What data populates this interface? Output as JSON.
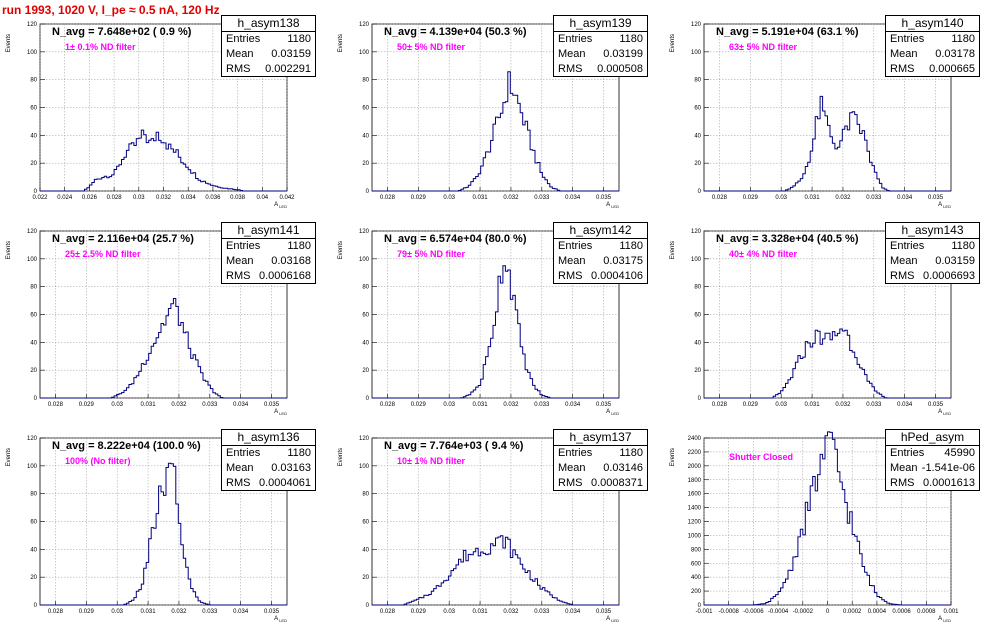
{
  "header": "run 1993,  1020 V, I_pe ≈ 0.5 nA, 120 Hz",
  "stat_labels": {
    "entries": "Entries",
    "mean": "Mean",
    "rms": "RMS"
  },
  "ylabel": "Events",
  "xlabel": "A",
  "xlabel_sub": "LED",
  "chart_data": [
    {
      "type": "bar",
      "title": "h_asym138",
      "navg": "N_avg = 7.648e+02 ( 0.9 %)",
      "filter": "1± 0.1% ND filter",
      "stats": {
        "entries": "1180",
        "mean": "0.03159",
        "rms": "0.002291"
      },
      "xlim": [
        0.022,
        0.042
      ],
      "ylim": [
        0,
        120
      ],
      "xticks": [
        "0.022",
        "0.024",
        "0.026",
        "0.028",
        "0.03",
        "0.032",
        "0.034",
        "0.036",
        "0.038",
        "0.04",
        "0.042"
      ],
      "yticks": [
        "0",
        "20",
        "40",
        "60",
        "80",
        "100",
        "120"
      ],
      "profile": [
        [
          0.0255,
          0
        ],
        [
          0.026,
          3
        ],
        [
          0.0265,
          8
        ],
        [
          0.027,
          10
        ],
        [
          0.028,
          12
        ],
        [
          0.0285,
          20
        ],
        [
          0.029,
          28
        ],
        [
          0.0295,
          31
        ],
        [
          0.03,
          36
        ],
        [
          0.0305,
          41
        ],
        [
          0.031,
          33
        ],
        [
          0.0315,
          42
        ],
        [
          0.032,
          38
        ],
        [
          0.0325,
          31
        ],
        [
          0.033,
          28
        ],
        [
          0.0335,
          22
        ],
        [
          0.034,
          18
        ],
        [
          0.0345,
          12
        ],
        [
          0.035,
          8
        ],
        [
          0.036,
          4
        ],
        [
          0.037,
          2
        ],
        [
          0.038,
          1
        ],
        [
          0.0385,
          0
        ]
      ]
    },
    {
      "type": "bar",
      "title": "h_asym139",
      "navg": "N_avg = 4.139e+04 (50.3 %)",
      "filter": "50± 5% ND filter",
      "stats": {
        "entries": "1180",
        "mean": "0.03199",
        "rms": "0.000508"
      },
      "xlim": [
        0.0275,
        0.0355
      ],
      "ylim": [
        0,
        120
      ],
      "xticks": [
        "0.028",
        "0.029",
        "0.03",
        "0.031",
        "0.032",
        "0.033",
        "0.034",
        "0.035"
      ],
      "yticks": [
        "0",
        "20",
        "40",
        "60",
        "80",
        "100",
        "120"
      ],
      "profile": [
        [
          0.0303,
          0
        ],
        [
          0.0306,
          3
        ],
        [
          0.0309,
          10
        ],
        [
          0.0312,
          25
        ],
        [
          0.0315,
          45
        ],
        [
          0.0318,
          65
        ],
        [
          0.0319,
          78
        ],
        [
          0.0321,
          72
        ],
        [
          0.0324,
          52
        ],
        [
          0.0327,
          30
        ],
        [
          0.033,
          12
        ],
        [
          0.0333,
          3
        ],
        [
          0.0336,
          0
        ]
      ]
    },
    {
      "type": "bar",
      "title": "h_asym140",
      "navg": "N_avg = 5.191e+04 (63.1 %)",
      "filter": "63± 5% ND filter",
      "stats": {
        "entries": "1180",
        "mean": "0.03178",
        "rms": "0.000665"
      },
      "xlim": [
        0.0275,
        0.0355
      ],
      "ylim": [
        0,
        120
      ],
      "xticks": [
        "0.028",
        "0.029",
        "0.03",
        "0.031",
        "0.032",
        "0.033",
        "0.034",
        "0.035"
      ],
      "yticks": [
        "0",
        "20",
        "40",
        "60",
        "80",
        "100",
        "120"
      ],
      "profile": [
        [
          0.0301,
          0
        ],
        [
          0.0304,
          3
        ],
        [
          0.0307,
          10
        ],
        [
          0.031,
          30
        ],
        [
          0.0312,
          55
        ],
        [
          0.0313,
          60
        ],
        [
          0.0315,
          48
        ],
        [
          0.0317,
          35
        ],
        [
          0.0319,
          32
        ],
        [
          0.0321,
          45
        ],
        [
          0.0323,
          52
        ],
        [
          0.0325,
          48
        ],
        [
          0.0327,
          38
        ],
        [
          0.0329,
          22
        ],
        [
          0.0331,
          10
        ],
        [
          0.0333,
          2
        ],
        [
          0.0335,
          0
        ]
      ]
    },
    {
      "type": "bar",
      "title": "h_asym141",
      "navg": "N_avg = 2.116e+04 (25.7 %)",
      "filter": "25± 2.5% ND filter",
      "stats": {
        "entries": "1180",
        "mean": "0.03168",
        "rms": "0.0006168"
      },
      "xlim": [
        0.0275,
        0.0355
      ],
      "ylim": [
        0,
        120
      ],
      "xticks": [
        "0.028",
        "0.029",
        "0.03",
        "0.031",
        "0.032",
        "0.033",
        "0.034",
        "0.035"
      ],
      "yticks": [
        "0",
        "20",
        "40",
        "60",
        "80",
        "100",
        "120"
      ],
      "profile": [
        [
          0.0298,
          0
        ],
        [
          0.0301,
          3
        ],
        [
          0.0304,
          8
        ],
        [
          0.0307,
          18
        ],
        [
          0.031,
          32
        ],
        [
          0.0313,
          45
        ],
        [
          0.0316,
          58
        ],
        [
          0.0318,
          67
        ],
        [
          0.032,
          60
        ],
        [
          0.0322,
          45
        ],
        [
          0.0325,
          28
        ],
        [
          0.0328,
          14
        ],
        [
          0.0331,
          5
        ],
        [
          0.0334,
          0
        ]
      ]
    },
    {
      "type": "bar",
      "title": "h_asym142",
      "navg": "N_avg = 6.574e+04 (80.0 %)",
      "filter": "79± 5% ND filter",
      "stats": {
        "entries": "1180",
        "mean": "0.03175",
        "rms": "0.0004106"
      },
      "xlim": [
        0.0275,
        0.0355
      ],
      "ylim": [
        0,
        120
      ],
      "xticks": [
        "0.028",
        "0.029",
        "0.03",
        "0.031",
        "0.032",
        "0.033",
        "0.034",
        "0.035"
      ],
      "yticks": [
        "0",
        "20",
        "40",
        "60",
        "80",
        "100",
        "120"
      ],
      "profile": [
        [
          0.0304,
          0
        ],
        [
          0.0307,
          3
        ],
        [
          0.031,
          10
        ],
        [
          0.0313,
          35
        ],
        [
          0.0315,
          62
        ],
        [
          0.0317,
          95
        ],
        [
          0.0318,
          102
        ],
        [
          0.032,
          85
        ],
        [
          0.0322,
          55
        ],
        [
          0.0324,
          30
        ],
        [
          0.0327,
          10
        ],
        [
          0.033,
          2
        ],
        [
          0.0333,
          0
        ]
      ]
    },
    {
      "type": "bar",
      "title": "h_asym143",
      "navg": "N_avg = 3.328e+04 (40.5 %)",
      "filter": "40± 4% ND filter",
      "stats": {
        "entries": "1180",
        "mean": "0.03159",
        "rms": "0.0006693"
      },
      "xlim": [
        0.0275,
        0.0355
      ],
      "ylim": [
        0,
        120
      ],
      "xticks": [
        "0.028",
        "0.029",
        "0.03",
        "0.031",
        "0.032",
        "0.033",
        "0.034",
        "0.035"
      ],
      "yticks": [
        "0",
        "20",
        "40",
        "60",
        "80",
        "100",
        "120"
      ],
      "profile": [
        [
          0.0297,
          0
        ],
        [
          0.03,
          4
        ],
        [
          0.0303,
          14
        ],
        [
          0.0306,
          28
        ],
        [
          0.0309,
          40
        ],
        [
          0.0312,
          45
        ],
        [
          0.0315,
          42
        ],
        [
          0.0318,
          46
        ],
        [
          0.032,
          52
        ],
        [
          0.0322,
          42
        ],
        [
          0.0325,
          28
        ],
        [
          0.0328,
          12
        ],
        [
          0.0331,
          4
        ],
        [
          0.0334,
          0
        ]
      ]
    },
    {
      "type": "bar",
      "title": "h_asym136",
      "navg": "N_avg = 8.222e+04 (100.0 %)",
      "filter": "100% (No filter)",
      "stats": {
        "entries": "1180",
        "mean": "0.03163",
        "rms": "0.0004061"
      },
      "xlim": [
        0.0275,
        0.0355
      ],
      "ylim": [
        0,
        120
      ],
      "xticks": [
        "0.028",
        "0.029",
        "0.03",
        "0.031",
        "0.032",
        "0.033",
        "0.034",
        "0.035"
      ],
      "yticks": [
        "0",
        "20",
        "40",
        "60",
        "80",
        "100",
        "120"
      ],
      "profile": [
        [
          0.0302,
          0
        ],
        [
          0.0305,
          3
        ],
        [
          0.0308,
          14
        ],
        [
          0.031,
          35
        ],
        [
          0.0312,
          58
        ],
        [
          0.0314,
          78
        ],
        [
          0.0316,
          90
        ],
        [
          0.0318,
          100
        ],
        [
          0.032,
          62
        ],
        [
          0.0322,
          32
        ],
        [
          0.0324,
          12
        ],
        [
          0.0327,
          2
        ],
        [
          0.033,
          0
        ]
      ]
    },
    {
      "type": "bar",
      "title": "h_asym137",
      "navg": "N_avg = 7.764e+03 ( 9.4 %)",
      "filter": "10± 1% ND filter",
      "stats": {
        "entries": "1180",
        "mean": "0.03146",
        "rms": "0.0008371"
      },
      "xlim": [
        0.0275,
        0.0355
      ],
      "ylim": [
        0,
        120
      ],
      "xticks": [
        "0.028",
        "0.029",
        "0.03",
        "0.031",
        "0.032",
        "0.033",
        "0.034",
        "0.035"
      ],
      "yticks": [
        "0",
        "20",
        "40",
        "60",
        "80",
        "100",
        "120"
      ],
      "profile": [
        [
          0.0285,
          0
        ],
        [
          0.029,
          4
        ],
        [
          0.0295,
          10
        ],
        [
          0.03,
          22
        ],
        [
          0.0305,
          35
        ],
        [
          0.031,
          40
        ],
        [
          0.0315,
          44
        ],
        [
          0.0318,
          47
        ],
        [
          0.032,
          40
        ],
        [
          0.0325,
          25
        ],
        [
          0.033,
          12
        ],
        [
          0.0335,
          4
        ],
        [
          0.034,
          0
        ]
      ]
    },
    {
      "type": "bar",
      "title": "hPed_asym",
      "navg": "",
      "filter": "Shutter Closed",
      "stats": {
        "entries": "45990",
        "mean": "-1.541e-06",
        "rms": "0.0001613"
      },
      "xlim": [
        -0.001,
        0.001
      ],
      "ylim": [
        0,
        2400
      ],
      "xticks": [
        "-0.001",
        "-0.0008",
        "-0.0006",
        "-0.0004",
        "-0.0002",
        "0",
        "0.0002",
        "0.0004",
        "0.0006",
        "0.0008",
        "0.001"
      ],
      "yticks": [
        "0",
        "200",
        "400",
        "600",
        "800",
        "1000",
        "1200",
        "1400",
        "1600",
        "1800",
        "2000",
        "2200",
        "2400"
      ],
      "profile": [
        [
          -0.0006,
          0
        ],
        [
          -0.0005,
          20
        ],
        [
          -0.0004,
          150
        ],
        [
          -0.0003,
          500
        ],
        [
          -0.0002,
          1100
        ],
        [
          -0.0001,
          1750
        ],
        [
          -3e-05,
          2150
        ],
        [
          0,
          2280
        ],
        [
          5e-05,
          2200
        ],
        [
          0.0001,
          1850
        ],
        [
          0.0002,
          1150
        ],
        [
          0.0003,
          500
        ],
        [
          0.0004,
          140
        ],
        [
          0.0005,
          20
        ],
        [
          0.0006,
          0
        ]
      ]
    }
  ]
}
